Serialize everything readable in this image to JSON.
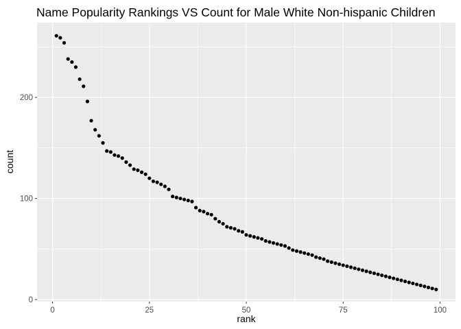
{
  "chart_data": {
    "type": "scatter",
    "title": "Name Popularity Rankings VS Count for Male White Non-hispanic Children",
    "xlabel": "rank",
    "ylabel": "count",
    "xlim": [
      -4,
      104
    ],
    "ylim": [
      -2,
      274
    ],
    "xticks": [
      0,
      25,
      50,
      75,
      100
    ],
    "xtick_labels": [
      "0",
      "25",
      "50",
      "75",
      "100"
    ],
    "yticks": [
      0,
      100,
      200
    ],
    "ytick_labels": [
      "0",
      "100",
      "200"
    ],
    "grid": true,
    "legend": "none",
    "background": "#ebebeb",
    "grid_color": "#ffffff",
    "point_color": "#000000",
    "points": [
      [
        1,
        261
      ],
      [
        2,
        259
      ],
      [
        3,
        254
      ],
      [
        4,
        238
      ],
      [
        5,
        235
      ],
      [
        6,
        230
      ],
      [
        7,
        218
      ],
      [
        8,
        211
      ],
      [
        9,
        196
      ],
      [
        10,
        177
      ],
      [
        11,
        168
      ],
      [
        12,
        162
      ],
      [
        13,
        155
      ],
      [
        14,
        147
      ],
      [
        15,
        146
      ],
      [
        16,
        143
      ],
      [
        17,
        142
      ],
      [
        18,
        140
      ],
      [
        19,
        136
      ],
      [
        20,
        133
      ],
      [
        21,
        129
      ],
      [
        22,
        128
      ],
      [
        23,
        126
      ],
      [
        24,
        124
      ],
      [
        25,
        120
      ],
      [
        26,
        117
      ],
      [
        27,
        116
      ],
      [
        28,
        114
      ],
      [
        29,
        112
      ],
      [
        30,
        109
      ],
      [
        31,
        102
      ],
      [
        32,
        101
      ],
      [
        33,
        100
      ],
      [
        34,
        99
      ],
      [
        35,
        98
      ],
      [
        36,
        97
      ],
      [
        37,
        91
      ],
      [
        38,
        88
      ],
      [
        39,
        87
      ],
      [
        40,
        85
      ],
      [
        41,
        84
      ],
      [
        42,
        80
      ],
      [
        43,
        77
      ],
      [
        44,
        75
      ],
      [
        45,
        72
      ],
      [
        46,
        71
      ],
      [
        47,
        70
      ],
      [
        48,
        68
      ],
      [
        49,
        67
      ],
      [
        50,
        64
      ],
      [
        51,
        63
      ],
      [
        52,
        62
      ],
      [
        53,
        61
      ],
      [
        54,
        60
      ],
      [
        55,
        58
      ],
      [
        56,
        57
      ],
      [
        57,
        56
      ],
      [
        58,
        55
      ],
      [
        59,
        54
      ],
      [
        60,
        53
      ],
      [
        61,
        51
      ],
      [
        62,
        49
      ],
      [
        63,
        48
      ],
      [
        64,
        47
      ],
      [
        65,
        46
      ],
      [
        66,
        45
      ],
      [
        67,
        44
      ],
      [
        68,
        42
      ],
      [
        69,
        41
      ],
      [
        70,
        40
      ],
      [
        71,
        38
      ],
      [
        72,
        37
      ],
      [
        73,
        36
      ],
      [
        74,
        35
      ],
      [
        75,
        34
      ],
      [
        76,
        33
      ],
      [
        77,
        32
      ],
      [
        78,
        31
      ],
      [
        79,
        30
      ],
      [
        80,
        29
      ],
      [
        81,
        28
      ],
      [
        82,
        27
      ],
      [
        83,
        26
      ],
      [
        84,
        25
      ],
      [
        85,
        24
      ],
      [
        86,
        23
      ],
      [
        87,
        22
      ],
      [
        88,
        21
      ],
      [
        89,
        20
      ],
      [
        90,
        19
      ],
      [
        91,
        18
      ],
      [
        92,
        17
      ],
      [
        93,
        16
      ],
      [
        94,
        15
      ],
      [
        95,
        14
      ],
      [
        96,
        13
      ],
      [
        97,
        12
      ],
      [
        98,
        11
      ],
      [
        99,
        10
      ]
    ]
  }
}
